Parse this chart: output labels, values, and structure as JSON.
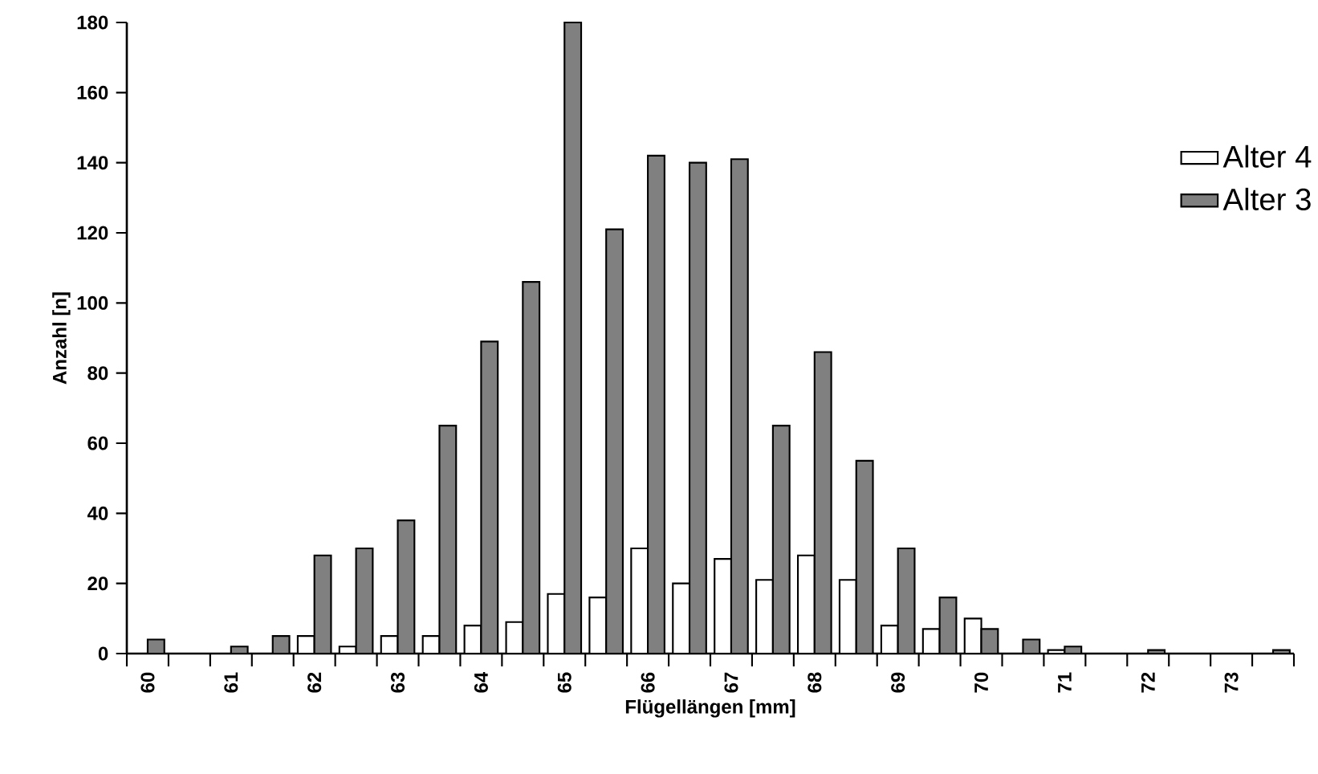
{
  "chart_data": {
    "type": "bar",
    "xlabel": "Flügellängen [mm]",
    "ylabel": "Anzahl [n]",
    "categories": [
      "60",
      null,
      "61",
      null,
      "62",
      null,
      "63",
      null,
      "64",
      null,
      "65",
      null,
      "66",
      null,
      "67",
      null,
      "68",
      null,
      "69",
      null,
      "70",
      null,
      "71",
      null,
      "72",
      null,
      "73",
      null
    ],
    "series": [
      {
        "name": "Alter 4",
        "color": "#ffffff",
        "values": [
          null,
          null,
          null,
          null,
          5,
          2,
          5,
          5,
          8,
          9,
          17,
          16,
          30,
          20,
          27,
          21,
          28,
          21,
          8,
          7,
          10,
          null,
          1,
          null,
          null,
          null,
          null,
          null
        ]
      },
      {
        "name": "Alter 3",
        "color": "#808080",
        "values": [
          4,
          null,
          2,
          5,
          28,
          30,
          38,
          65,
          89,
          106,
          180,
          121,
          142,
          140,
          141,
          65,
          86,
          55,
          30,
          16,
          7,
          4,
          2,
          null,
          1,
          null,
          null,
          1
        ]
      }
    ],
    "ylim": [
      0,
      180
    ],
    "yticks": [
      0,
      20,
      40,
      60,
      80,
      100,
      120,
      140,
      160,
      180
    ],
    "grid": false,
    "legend": "top right"
  }
}
